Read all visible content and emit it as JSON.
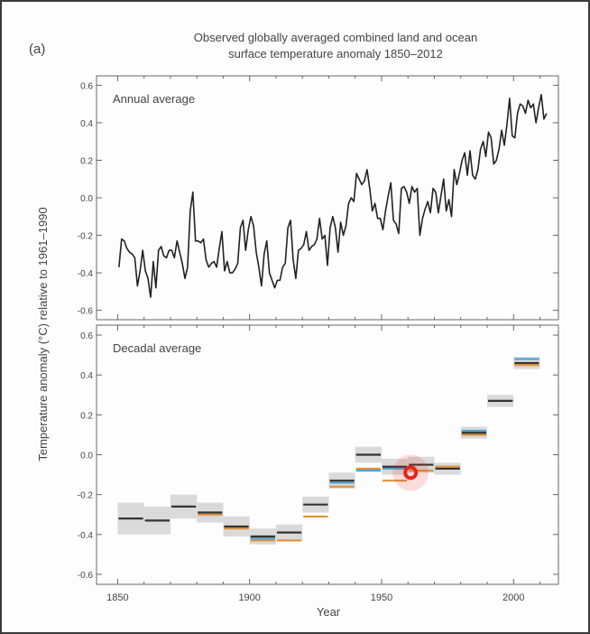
{
  "chart_data": [
    {
      "type": "line",
      "panel_label": "(a)",
      "title": "Observed globally averaged combined land and ocean",
      "subtitle": "surface temperature anomaly 1850–2012",
      "panel_title": "Annual average",
      "xlabel": "Year",
      "ylabel": "Temperature anomaly (°C) relative to 1961–1990",
      "xlim": [
        1842,
        2017
      ],
      "ylim": [
        -0.65,
        0.65
      ],
      "yticks": [
        "0.6",
        "0.4",
        "0.2",
        "0.0",
        "-0.2",
        "-0.4",
        "-0.6"
      ],
      "ytick_values": [
        0.6,
        0.4,
        0.2,
        0.0,
        -0.2,
        -0.4,
        -0.6
      ],
      "grid": false,
      "series": [
        {
          "color": "#222222",
          "x_start": 1850,
          "values": [
            -0.37,
            -0.22,
            -0.23,
            -0.27,
            -0.29,
            -0.3,
            -0.32,
            -0.47,
            -0.39,
            -0.28,
            -0.39,
            -0.43,
            -0.53,
            -0.34,
            -0.48,
            -0.28,
            -0.26,
            -0.31,
            -0.32,
            -0.28,
            -0.28,
            -0.32,
            -0.23,
            -0.29,
            -0.35,
            -0.43,
            -0.37,
            -0.07,
            0.03,
            -0.23,
            -0.23,
            -0.24,
            -0.22,
            -0.33,
            -0.37,
            -0.35,
            -0.34,
            -0.37,
            -0.27,
            -0.18,
            -0.39,
            -0.34,
            -0.4,
            -0.4,
            -0.38,
            -0.35,
            -0.16,
            -0.12,
            -0.28,
            -0.17,
            -0.1,
            -0.15,
            -0.29,
            -0.37,
            -0.47,
            -0.3,
            -0.23,
            -0.4,
            -0.44,
            -0.48,
            -0.44,
            -0.44,
            -0.37,
            -0.35,
            -0.16,
            -0.12,
            -0.33,
            -0.43,
            -0.28,
            -0.27,
            -0.25,
            -0.18,
            -0.28,
            -0.26,
            -0.25,
            -0.22,
            -0.11,
            -0.22,
            -0.2,
            -0.36,
            -0.16,
            -0.1,
            -0.16,
            -0.29,
            -0.13,
            -0.2,
            -0.15,
            -0.03,
            0.0,
            -0.02,
            0.13,
            0.1,
            0.07,
            0.09,
            0.15,
            0.05,
            -0.07,
            -0.03,
            -0.11,
            -0.11,
            -0.17,
            -0.07,
            0.01,
            0.08,
            -0.12,
            -0.14,
            -0.19,
            0.05,
            0.06,
            0.03,
            -0.03,
            0.06,
            0.03,
            0.05,
            -0.2,
            -0.11,
            -0.06,
            -0.02,
            -0.08,
            0.05,
            0.03,
            -0.08,
            0.01,
            0.1,
            -0.07,
            -0.01,
            -0.1,
            0.15,
            0.07,
            0.13,
            0.2,
            0.24,
            0.12,
            0.25,
            0.12,
            0.1,
            0.15,
            0.26,
            0.3,
            0.22,
            0.35,
            0.32,
            0.18,
            0.2,
            0.26,
            0.36,
            0.28,
            0.39,
            0.53,
            0.33,
            0.32,
            0.45,
            0.5,
            0.49,
            0.45,
            0.52,
            0.48,
            0.5,
            0.4,
            0.48,
            0.55,
            0.42,
            0.45
          ]
        }
      ]
    },
    {
      "type": "bar",
      "panel_title": "Decadal average",
      "xlim": [
        1842,
        2017
      ],
      "ylim": [
        -0.65,
        0.65
      ],
      "xticks": [
        "1850",
        "1900",
        "1950",
        "2000"
      ],
      "xtick_values": [
        1850,
        1900,
        1950,
        2000
      ],
      "yticks": [
        "0.6",
        "0.4",
        "0.2",
        "0.0",
        "-0.2",
        "-0.4",
        "-0.6"
      ],
      "ytick_values": [
        0.6,
        0.4,
        0.2,
        0.0,
        -0.2,
        -0.4,
        -0.6
      ],
      "decades": [
        1850,
        1860,
        1870,
        1880,
        1890,
        1900,
        1910,
        1920,
        1930,
        1940,
        1950,
        1960,
        1970,
        1980,
        1990,
        2000
      ],
      "uncertainty": [
        0.08,
        0.07,
        0.06,
        0.05,
        0.05,
        0.04,
        0.04,
        0.04,
        0.04,
        0.04,
        0.04,
        0.04,
        0.03,
        0.03,
        0.03,
        0.03
      ],
      "series": [
        {
          "color": "#333333",
          "values": [
            -0.32,
            -0.33,
            -0.26,
            -0.29,
            -0.36,
            -0.41,
            -0.39,
            -0.25,
            -0.13,
            0.0,
            -0.06,
            -0.05,
            -0.07,
            0.11,
            0.27,
            0.46
          ]
        },
        {
          "color": "#e0913a",
          "values": [
            null,
            null,
            null,
            -0.3,
            -0.37,
            -0.43,
            -0.43,
            -0.31,
            -0.16,
            -0.07,
            -0.13,
            -0.08,
            -0.06,
            0.1,
            0.27,
            0.45
          ]
        },
        {
          "color": "#4fa3d1",
          "values": [
            null,
            null,
            null,
            null,
            null,
            -0.42,
            null,
            null,
            -0.14,
            -0.08,
            -0.07,
            null,
            -0.07,
            0.12,
            null,
            0.48
          ]
        }
      ],
      "highlight_marker": {
        "x": 1961,
        "y": -0.09,
        "color": "#e8241c"
      }
    }
  ]
}
